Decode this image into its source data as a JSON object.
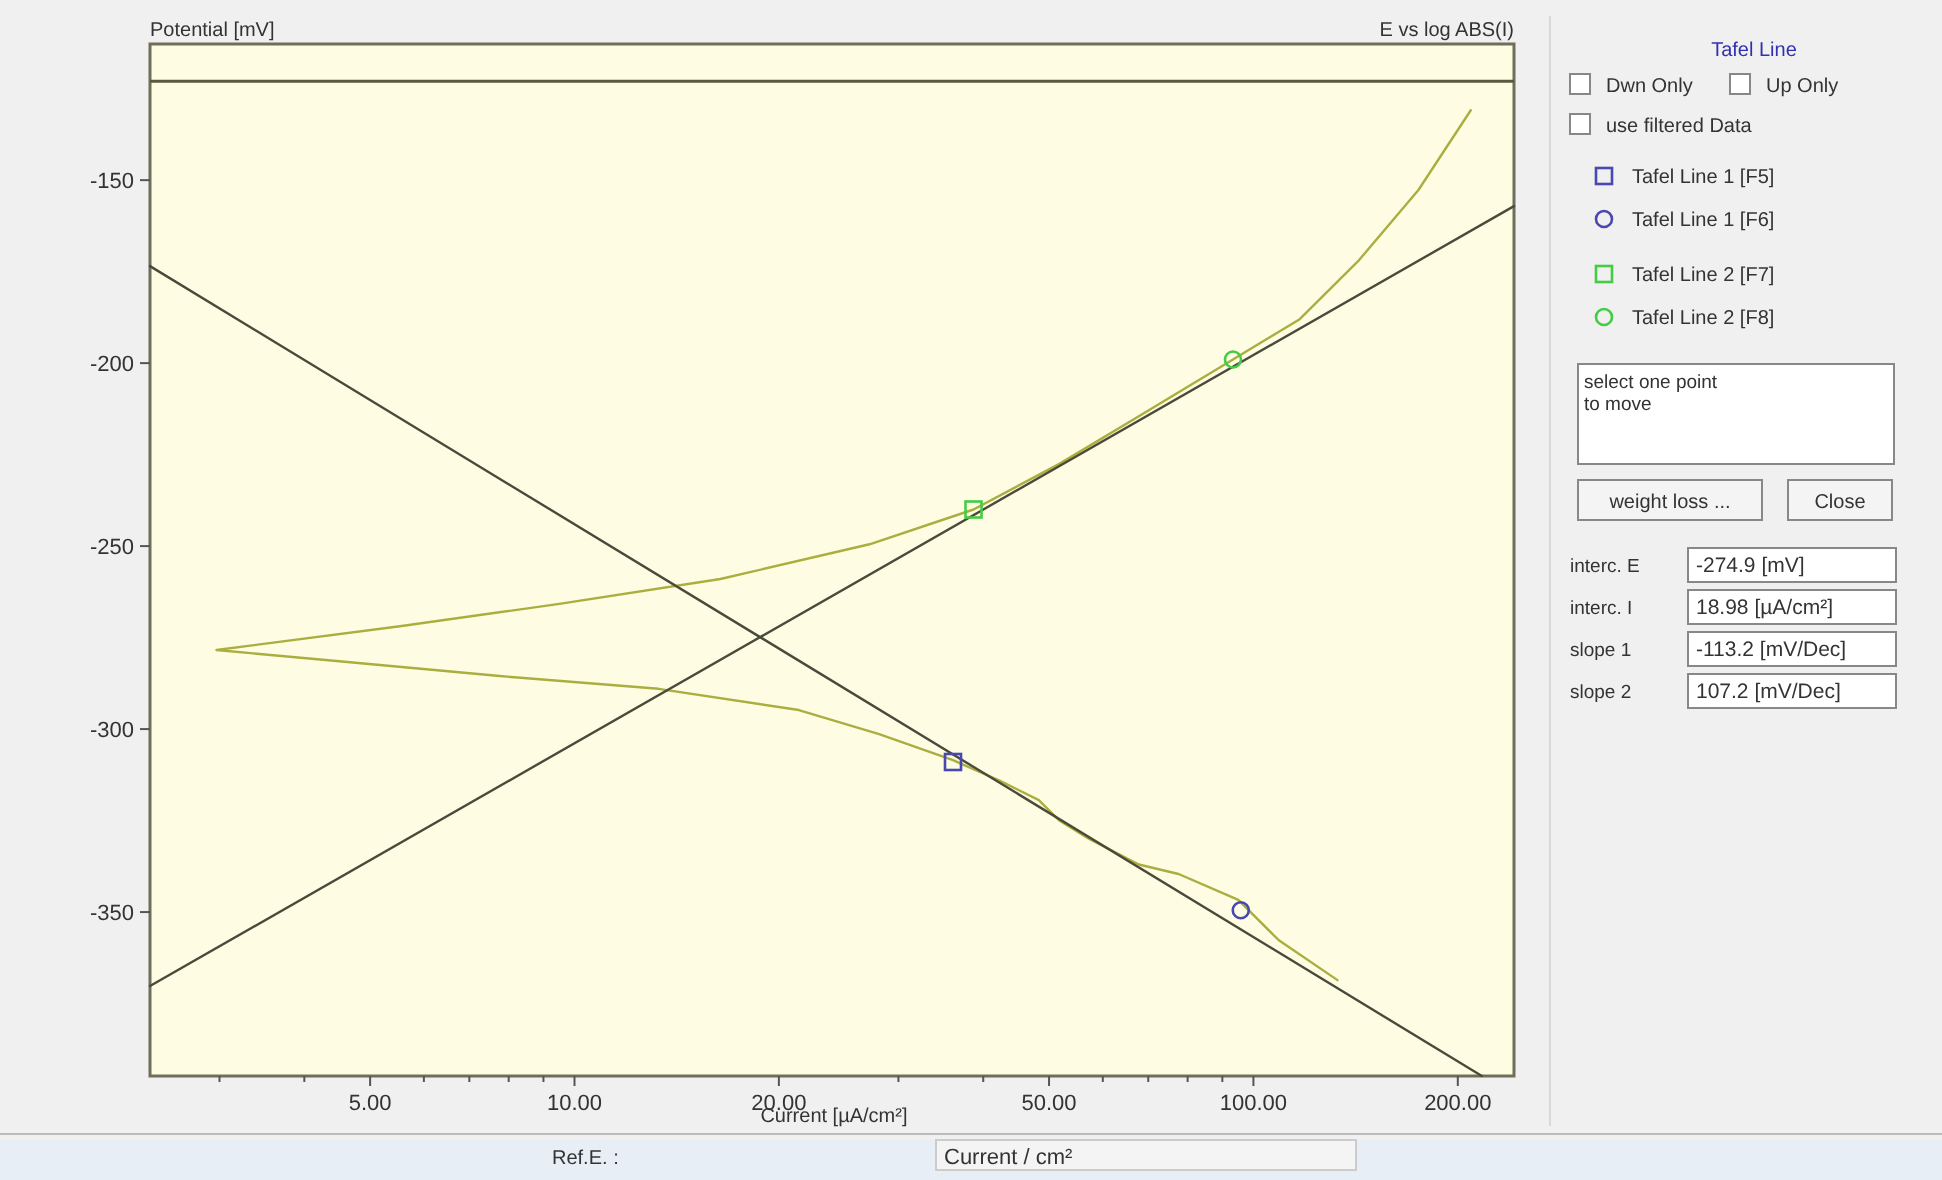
{
  "chart_data": {
    "type": "line",
    "title": "E vs log ABS(I)",
    "ylabel": "Potential [mV]",
    "xlabel": "Current [µA/cm²]",
    "legend_title": "Tafel Line",
    "log": "x",
    "xlim": [
      2.37,
      242
    ],
    "ylim": [
      -394.8,
      -112.8
    ],
    "xticks": [
      {
        "value": 3,
        "label": null
      },
      {
        "value": 4,
        "label": null
      },
      {
        "value": 5,
        "label": "5.00"
      },
      {
        "value": 6,
        "label": null
      },
      {
        "value": 7,
        "label": null
      },
      {
        "value": 8,
        "label": null
      },
      {
        "value": 9,
        "label": null
      },
      {
        "value": 10,
        "label": "10.00"
      },
      {
        "value": 20,
        "label": "20.00"
      },
      {
        "value": 30,
        "label": null
      },
      {
        "value": 40,
        "label": null
      },
      {
        "value": 50,
        "label": "50.00"
      },
      {
        "value": 60,
        "label": null
      },
      {
        "value": 70,
        "label": null
      },
      {
        "value": 80,
        "label": null
      },
      {
        "value": 90,
        "label": null
      },
      {
        "value": 100,
        "label": "100.00"
      },
      {
        "value": 200,
        "label": "200.00"
      }
    ],
    "yticks": [
      -150,
      -200,
      -250,
      -300,
      -350
    ],
    "grid": false,
    "legend": "right",
    "marker": "none",
    "line_style": "solid",
    "ref_lines": [
      {
        "axis": "y",
        "value": -123,
        "color": "#5a5a40"
      }
    ],
    "series": [
      {
        "color": "#aaae3e",
        "x": [
          209,
          175,
          143,
          117,
          93.3,
          67.8,
          51.7,
          38.7,
          27.2,
          16.4,
          9.5,
          5.53,
          2.97,
          4.22,
          7.76,
          13.3,
          21.4,
          28.1,
          36.1,
          42.2,
          48.3,
          51.7,
          57.3,
          67.8,
          77.6,
          95,
          109,
          133
        ],
        "values": [
          -130.9,
          -152.7,
          -171.9,
          -188,
          -199,
          -214.5,
          -227.6,
          -240,
          -249.5,
          -259,
          -265.8,
          -271.9,
          -278.4,
          -281,
          -285.5,
          -289,
          -294.8,
          -301.4,
          -308.5,
          -314,
          -319.4,
          -324.9,
          -330,
          -337,
          -339.6,
          -346.7,
          -357.7,
          -368.6
        ]
      },
      {
        "type": "line",
        "color": "#4a4a3a",
        "x": [
          2.37,
          217
        ],
        "values": [
          -173.5,
          -394.8
        ]
      },
      {
        "type": "line",
        "color": "#4a4a3a",
        "x": [
          2.37,
          242
        ],
        "values": [
          -370.2,
          -157.1
        ]
      },
      {
        "type": "scatter",
        "name": "Tafel Line 1 [F5]",
        "color": "#4848b0",
        "marker": "square",
        "x": [
          36.1
        ],
        "values": [
          -309
        ]
      },
      {
        "type": "scatter",
        "name": "Tafel Line 1 [F6]",
        "color": "#4848b0",
        "marker": "circle",
        "x": [
          95.8
        ],
        "values": [
          -349.5
        ]
      },
      {
        "type": "scatter",
        "name": "Tafel Line 2 [F7]",
        "color": "#44cc44",
        "marker": "square",
        "x": [
          38.7
        ],
        "values": [
          -240
        ]
      },
      {
        "type": "scatter",
        "name": "Tafel Line 2 [F8]",
        "color": "#44cc44",
        "marker": "circle",
        "x": [
          93.3
        ],
        "values": [
          -199
        ]
      }
    ],
    "annotations": [
      "Dwn Only",
      "Up Only",
      "use filtered Data",
      "select one point",
      "to move",
      "weight loss ...",
      "Close",
      "interc. E",
      "-274.9 [mV]",
      "interc. I",
      "18.98 [µA/cm²]",
      "slope 1",
      "-113.2 [mV/Dec]",
      "slope 2",
      "107.2 [mV/Dec]",
      "Ref.E. :",
      "Current / cm²"
    ]
  }
}
